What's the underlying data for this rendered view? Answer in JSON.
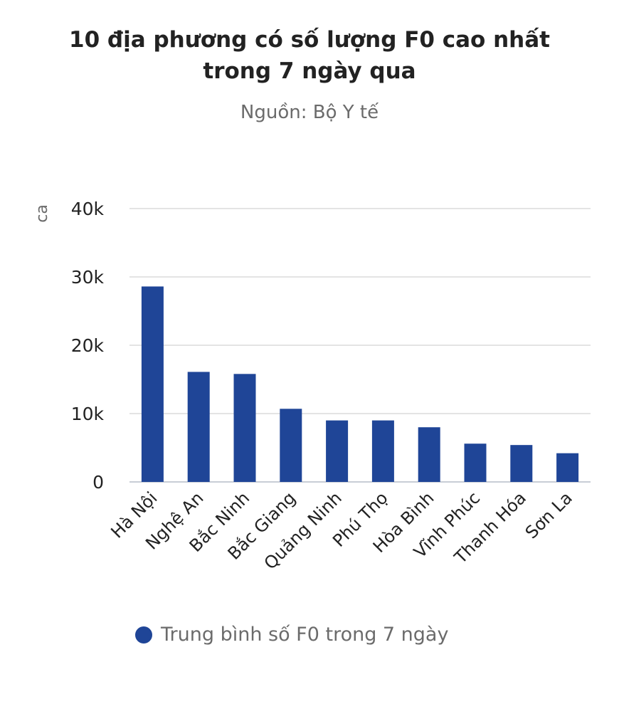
{
  "title": "10 địa phương có số lượng F0 cao nhất trong 7 ngày qua",
  "subtitle": "Nguồn: Bộ Y tế",
  "colors": {
    "bar": "#1f4597",
    "grid": "#e4e4e4",
    "axis": "#c8cdd6",
    "tick_text": "#222222",
    "muted_text": "#6b6b6b"
  },
  "chart_data": {
    "type": "bar",
    "title": "10 địa phương có số lượng F0 cao nhất trong 7 ngày qua",
    "subtitle": "Nguồn: Bộ Y tế",
    "xlabel": "",
    "ylabel": "ca",
    "ylim": [
      0,
      40000
    ],
    "yticks": [
      0,
      10000,
      20000,
      30000,
      40000
    ],
    "ytick_labels": [
      "0",
      "10k",
      "20k",
      "30k",
      "40k"
    ],
    "grid": true,
    "legend_position": "bottom",
    "categories": [
      "Hà Nội",
      "Nghệ An",
      "Bắc Ninh",
      "Bắc Giang",
      "Quảng Ninh",
      "Phú Thọ",
      "Hòa Bình",
      "Vĩnh Phúc",
      "Thanh Hóa",
      "Sơn La"
    ],
    "series": [
      {
        "name": "Trung bình số F0 trong 7 ngày",
        "values": [
          28600,
          16100,
          15800,
          10700,
          9000,
          9000,
          8000,
          5600,
          5400,
          4200
        ]
      }
    ]
  }
}
